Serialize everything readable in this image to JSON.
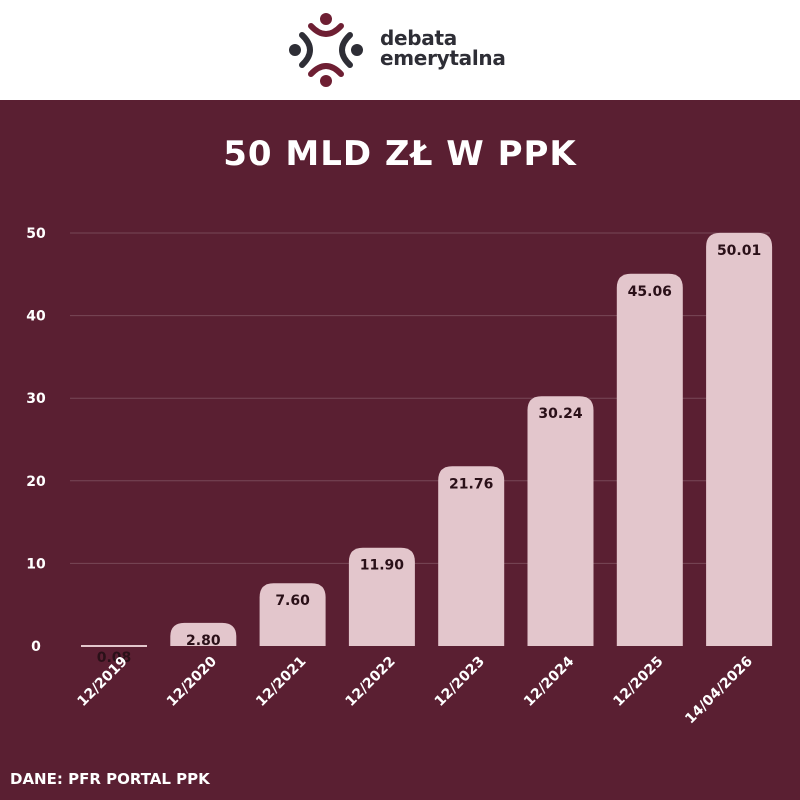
{
  "header": {
    "brand_line1": "debata",
    "brand_line2": "emerytalna"
  },
  "source": "DANE: PFR PORTAL PPK",
  "colors": {
    "background": "#5a1f32",
    "bar": "#e3c6cc",
    "logo_dark": "#2e2e36",
    "logo_accent": "#6e1f33"
  },
  "chart_data": {
    "type": "bar",
    "title": "50 MLD ZŁ W PPK",
    "categories": [
      "12/2019",
      "12/2020",
      "12/2021",
      "12/2022",
      "12/2023",
      "12/2024",
      "12/2025",
      "14/04/2026"
    ],
    "values": [
      0.08,
      2.8,
      7.6,
      11.9,
      21.76,
      30.24,
      45.06,
      50.01
    ],
    "value_labels": [
      "0.08",
      "2.80",
      "7.60",
      "11.90",
      "21.76",
      "30.24",
      "45.06",
      "50.01"
    ],
    "yticks": [
      "0",
      "10",
      "20",
      "30",
      "40",
      "50"
    ],
    "ylim": [
      0,
      50
    ],
    "grid": true,
    "xlabel": "",
    "ylabel": ""
  }
}
